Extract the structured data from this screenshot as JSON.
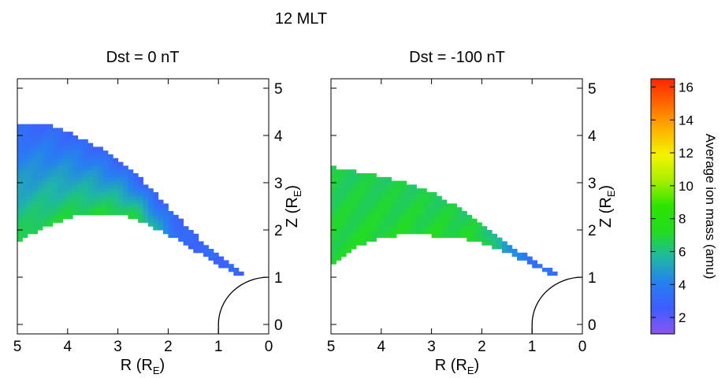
{
  "figure": {
    "title": "12 MLT"
  },
  "chart_data": [
    {
      "type": "heatmap",
      "title": "Dst = 0 nT",
      "xlabel": "R (R_E)",
      "ylabel": "Z (R_E)",
      "xlim": [
        5,
        0
      ],
      "ylim": [
        -0.2,
        5.2
      ],
      "xticks": [
        5,
        4,
        3,
        2,
        1,
        0
      ],
      "yticks": [
        0,
        1,
        2,
        3,
        4,
        5
      ],
      "y_axis_side": "right",
      "earth_radius": 1,
      "region": {
        "top_boundary": [
          [
            5.0,
            4.22
          ],
          [
            4.5,
            4.22
          ],
          [
            4.0,
            4.05
          ],
          [
            3.5,
            3.78
          ],
          [
            3.0,
            3.45
          ],
          [
            2.5,
            3.0
          ],
          [
            2.0,
            2.45
          ],
          [
            1.5,
            1.9
          ],
          [
            1.0,
            1.4
          ],
          [
            0.5,
            1.03
          ]
        ],
        "bottom_boundary": [
          [
            5.0,
            1.75
          ],
          [
            4.5,
            2.1
          ],
          [
            4.0,
            2.3
          ],
          [
            3.5,
            2.4
          ],
          [
            3.0,
            2.38
          ],
          [
            2.5,
            2.2
          ],
          [
            2.0,
            1.95
          ],
          [
            1.5,
            1.62
          ],
          [
            1.0,
            1.3
          ],
          [
            0.5,
            1.03
          ]
        ]
      },
      "mass_profile": {
        "mass_at_bottom_boundary": 6.8,
        "mass_at_top_boundary": 3.0,
        "region_edge_r": 2.6,
        "mass_outside_edge": 3.0
      }
    },
    {
      "type": "heatmap",
      "title": "Dst = -100 nT",
      "xlabel": "R (R_E)",
      "ylabel": "Z (R_E)",
      "xlim": [
        5,
        0
      ],
      "ylim": [
        -0.2,
        5.2
      ],
      "xticks": [
        5,
        4,
        3,
        2,
        1,
        0
      ],
      "yticks": [
        0,
        1,
        2,
        3,
        4,
        5
      ],
      "y_axis_side": "right",
      "earth_radius": 1,
      "region": {
        "top_boundary": [
          [
            5.0,
            3.3
          ],
          [
            4.5,
            3.2
          ],
          [
            4.0,
            3.1
          ],
          [
            3.5,
            2.95
          ],
          [
            3.0,
            2.75
          ],
          [
            2.5,
            2.45
          ],
          [
            2.0,
            2.05
          ],
          [
            1.5,
            1.68
          ],
          [
            1.0,
            1.35
          ],
          [
            0.5,
            1.03
          ]
        ],
        "bottom_boundary": [
          [
            5.0,
            1.25
          ],
          [
            4.5,
            1.7
          ],
          [
            4.0,
            1.88
          ],
          [
            3.5,
            1.95
          ],
          [
            3.0,
            1.92
          ],
          [
            2.5,
            1.88
          ],
          [
            2.0,
            1.75
          ],
          [
            1.5,
            1.55
          ],
          [
            1.0,
            1.3
          ],
          [
            0.5,
            1.03
          ]
        ]
      },
      "mass_profile": {
        "mass_at_bottom_boundary": 7.0,
        "mass_at_top_boundary": 6.6,
        "region_edge_r": 2.0,
        "mass_outside_edge": 3.5
      }
    }
  ],
  "colorbar": {
    "label": "Average ion mass (amu)",
    "range": [
      1,
      16.5
    ],
    "ticks": [
      2,
      4,
      6,
      8,
      10,
      12,
      14,
      16
    ],
    "colors": [
      "#8a55f0",
      "#3f5cff",
      "#2680f0",
      "#1fb7a4",
      "#22dc22",
      "#2be400",
      "#a6ef00",
      "#f4f400",
      "#ffb300",
      "#ff6a00",
      "#ff2400"
    ]
  }
}
